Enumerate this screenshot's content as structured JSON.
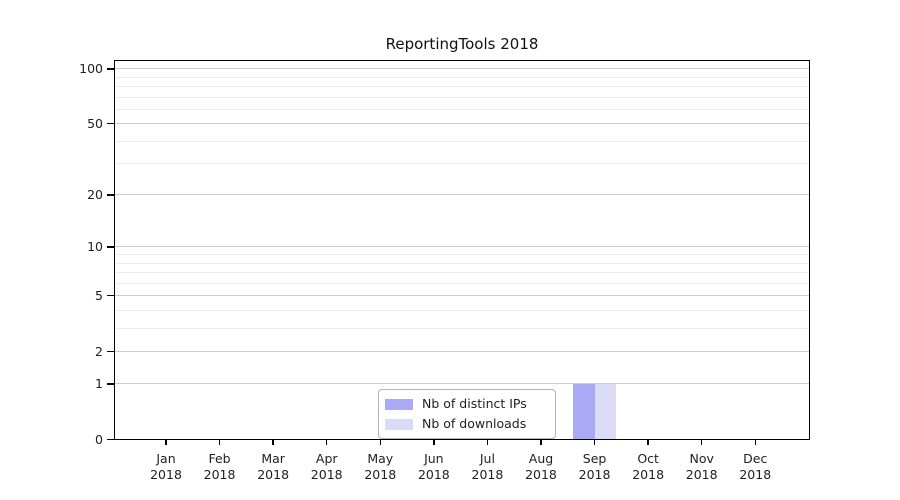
{
  "title": "ReportingTools 2018",
  "chart_data": {
    "type": "bar",
    "title": "ReportingTools 2018",
    "categories": [
      "Jan 2018",
      "Feb 2018",
      "Mar 2018",
      "Apr 2018",
      "May 2018",
      "Jun 2018",
      "Jul 2018",
      "Aug 2018",
      "Sep 2018",
      "Oct 2018",
      "Nov 2018",
      "Dec 2018"
    ],
    "series": [
      {
        "name": "Nb of distinct IPs",
        "color": "#a9a9f5",
        "values": [
          0,
          0,
          0,
          0,
          0,
          0,
          0,
          0,
          1,
          0,
          0,
          0
        ]
      },
      {
        "name": "Nb of downloads",
        "color": "#dbdbf8",
        "values": [
          0,
          0,
          0,
          0,
          0,
          0,
          0,
          0,
          1,
          0,
          0,
          0
        ]
      }
    ],
    "yscale": "log1p",
    "ylim": [
      0,
      111
    ],
    "y_major_ticks": [
      0,
      1,
      2,
      5,
      10,
      20,
      50,
      100
    ],
    "y_minor_ticks": [
      3,
      4,
      6,
      7,
      8,
      9,
      30,
      40,
      60,
      70,
      80,
      90
    ],
    "grid": "horizontal",
    "legend_position": "inside-bottom-center",
    "colors": {
      "background": "#ffffff",
      "major_grid": "#cccccc",
      "minor_grid": "#ededed",
      "spine": "#000000",
      "text": "#1f1f1f"
    }
  }
}
